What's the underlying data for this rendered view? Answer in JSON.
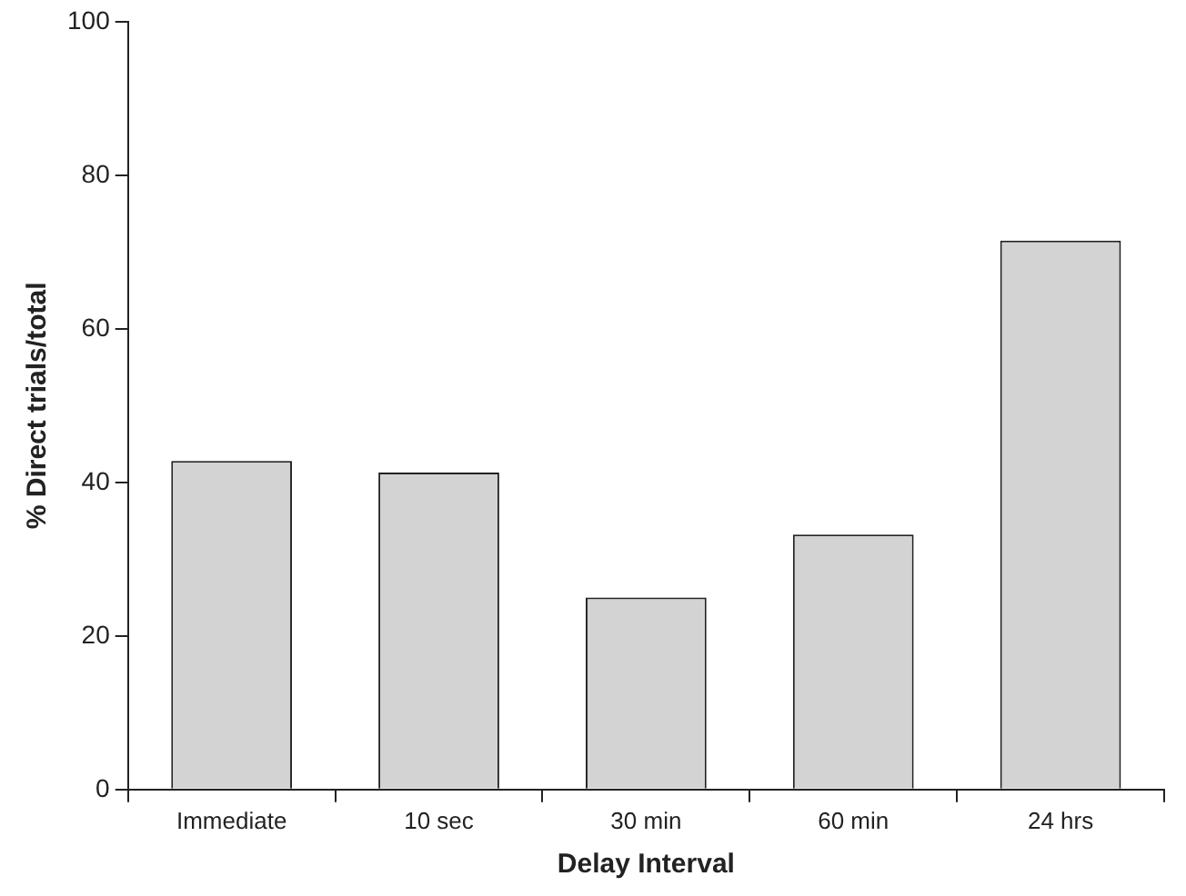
{
  "chart_data": {
    "type": "bar",
    "xlabel": "Delay Interval",
    "ylabel": "% Direct trials/total",
    "categories": [
      "Immediate",
      "10 sec",
      "30 min",
      "60 min",
      "24 hrs"
    ],
    "values": [
      42.8,
      41.3,
      25,
      33.2,
      71.5
    ],
    "color": "#d3d3d3",
    "ylim": [
      0,
      100
    ],
    "yticks": [
      0,
      20,
      40,
      60,
      80,
      100
    ],
    "grid": false
  }
}
